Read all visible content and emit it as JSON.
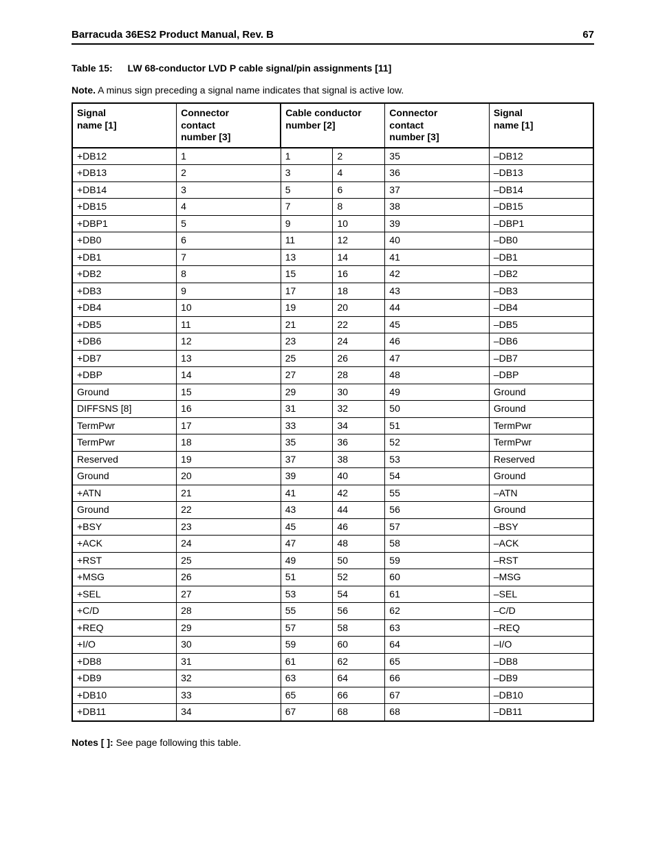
{
  "header": {
    "title": "Barracuda 36ES2 Product Manual, Rev. B",
    "page_number": "67"
  },
  "caption": {
    "label": "Table 15:",
    "title": "LW 68-conductor LVD P cable signal/pin assignments [11]"
  },
  "note": {
    "label": "Note.",
    "text": "A minus sign preceding a signal name indicates that signal is active low."
  },
  "columns": [
    "Signal name [1]",
    "Connector contact number [3]",
    "Cable conductor number [2]",
    "",
    "Connector contact number [3]",
    "Signal name [1]"
  ],
  "col_header_lines": [
    [
      "Signal",
      "name [1]"
    ],
    [
      "Connector",
      "contact",
      "number [3]"
    ],
    [
      "Cable conductor",
      "number [2]"
    ],
    [
      ""
    ],
    [
      "Connector",
      "contact",
      "number [3]"
    ],
    [
      "Signal",
      "name [1]"
    ]
  ],
  "rows": [
    [
      "+DB12",
      "1",
      "1",
      "2",
      "35",
      "–DB12"
    ],
    [
      "+DB13",
      "2",
      "3",
      "4",
      "36",
      "–DB13"
    ],
    [
      "+DB14",
      "3",
      "5",
      "6",
      "37",
      "–DB14"
    ],
    [
      "+DB15",
      "4",
      "7",
      "8",
      "38",
      "–DB15"
    ],
    [
      "+DBP1",
      "5",
      "9",
      "10",
      "39",
      "–DBP1"
    ],
    [
      "+DB0",
      "6",
      "11",
      "12",
      "40",
      "–DB0"
    ],
    [
      "+DB1",
      "7",
      "13",
      "14",
      "41",
      "–DB1"
    ],
    [
      "+DB2",
      "8",
      "15",
      "16",
      "42",
      "–DB2"
    ],
    [
      "+DB3",
      "9",
      "17",
      "18",
      "43",
      "–DB3"
    ],
    [
      "+DB4",
      "10",
      "19",
      "20",
      "44",
      "–DB4"
    ],
    [
      "+DB5",
      "11",
      "21",
      "22",
      "45",
      "–DB5"
    ],
    [
      "+DB6",
      "12",
      "23",
      "24",
      "46",
      "–DB6"
    ],
    [
      "+DB7",
      "13",
      "25",
      "26",
      "47",
      "–DB7"
    ],
    [
      "+DBP",
      "14",
      "27",
      "28",
      "48",
      "–DBP"
    ],
    [
      "Ground",
      "15",
      "29",
      "30",
      "49",
      "Ground"
    ],
    [
      "DIFFSNS [8]",
      "16",
      "31",
      "32",
      "50",
      "Ground"
    ],
    [
      "TermPwr",
      "17",
      "33",
      "34",
      "51",
      "TermPwr"
    ],
    [
      "TermPwr",
      "18",
      "35",
      "36",
      "52",
      "TermPwr"
    ],
    [
      "Reserved",
      "19",
      "37",
      "38",
      "53",
      "Reserved"
    ],
    [
      "Ground",
      "20",
      "39",
      "40",
      "54",
      "Ground"
    ],
    [
      "+ATN",
      "21",
      "41",
      "42",
      "55",
      "–ATN"
    ],
    [
      "Ground",
      "22",
      "43",
      "44",
      "56",
      "Ground"
    ],
    [
      "+BSY",
      "23",
      "45",
      "46",
      "57",
      "–BSY"
    ],
    [
      "+ACK",
      "24",
      "47",
      "48",
      "58",
      "–ACK"
    ],
    [
      "+RST",
      "25",
      "49",
      "50",
      "59",
      "–RST"
    ],
    [
      "+MSG",
      "26",
      "51",
      "52",
      "60",
      "–MSG"
    ],
    [
      "+SEL",
      "27",
      "53",
      "54",
      "61",
      "–SEL"
    ],
    [
      "+C/D",
      "28",
      "55",
      "56",
      "62",
      "–C/D"
    ],
    [
      "+REQ",
      "29",
      "57",
      "58",
      "63",
      "–REQ"
    ],
    [
      "+I/O",
      "30",
      "59",
      "60",
      "64",
      "–I/O"
    ],
    [
      "+DB8",
      "31",
      "61",
      "62",
      "65",
      "–DB8"
    ],
    [
      "+DB9",
      "32",
      "63",
      "64",
      "66",
      "–DB9"
    ],
    [
      "+DB10",
      "33",
      "65",
      "66",
      "67",
      "–DB10"
    ],
    [
      "+DB11",
      "34",
      "67",
      "68",
      "68",
      "–DB11"
    ]
  ],
  "col_widths_pct": [
    20,
    20,
    10,
    10,
    20,
    20
  ],
  "footnote": {
    "label": "Notes [ ]:",
    "text": "See page following this table."
  },
  "style": {
    "font_family": "Arial",
    "body_font_size_pt": 10.5,
    "border_color": "#000000",
    "background": "#ffffff"
  }
}
